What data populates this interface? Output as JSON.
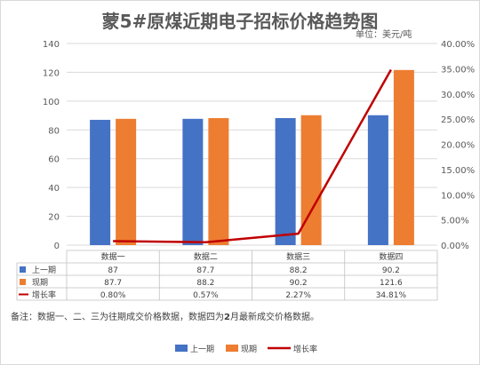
{
  "title": "蒙5#原煤近期电子招标价格趋势图",
  "unit_label": "单位：美元/吨",
  "note_prefix": "备注：数据一、二、三为往期成交价格数据，数据四为",
  "note_bold": "2",
  "note_suffix": "月最新成交价格数据。",
  "chart_data": {
    "type": "bar",
    "categories": [
      "数据一",
      "数据二",
      "数据三",
      "数据四"
    ],
    "series": [
      {
        "name": "上一期",
        "values": [
          87,
          87.7,
          88.2,
          90.2
        ],
        "color": "#4472c4",
        "axis": "left",
        "kind": "bar"
      },
      {
        "name": "现期",
        "values": [
          87.7,
          88.2,
          90.2,
          121.6
        ],
        "color": "#ed7d31",
        "axis": "left",
        "kind": "bar"
      },
      {
        "name": "增长率",
        "values": [
          0.8,
          0.57,
          2.27,
          34.81
        ],
        "display": [
          "0.80%",
          "0.57%",
          "2.27%",
          "34.81%"
        ],
        "color": "#c00000",
        "axis": "right",
        "kind": "line"
      }
    ],
    "ylim": [
      0,
      140
    ],
    "yticks": [
      "0",
      "20",
      "40",
      "60",
      "80",
      "100",
      "120",
      "140"
    ],
    "y2lim": [
      0,
      40
    ],
    "y2ticks": [
      "0.00%",
      "5.00%",
      "10.00%",
      "15.00%",
      "20.00%",
      "25.00%",
      "30.00%",
      "35.00%",
      "40.00%"
    ],
    "grid": true,
    "legend": "bottom",
    "data_table": true
  }
}
